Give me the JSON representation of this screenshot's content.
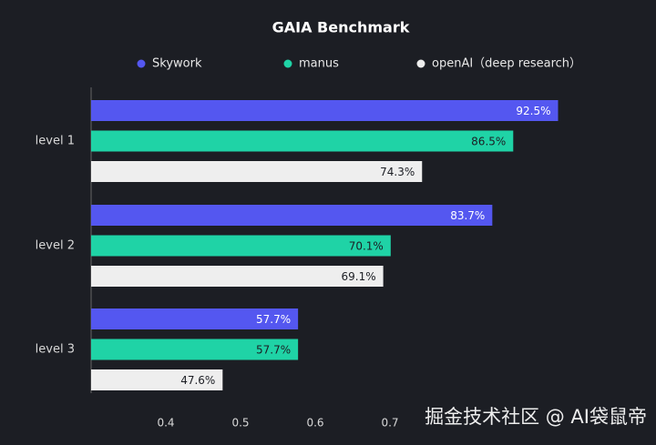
{
  "chart_data": {
    "type": "bar",
    "orientation": "horizontal",
    "title": "GAIA Benchmark",
    "categories": [
      "level 1",
      "level 2",
      "level 3"
    ],
    "series": [
      {
        "name": "Skywork",
        "color": "#5457f0",
        "values": [
          0.925,
          0.837,
          0.577
        ],
        "value_labels": [
          "92.5%",
          "83.7%",
          "57.7%"
        ],
        "label_color": "#ffffff"
      },
      {
        "name": "manus",
        "color": "#1fd3a6",
        "values": [
          0.865,
          0.701,
          0.577
        ],
        "value_labels": [
          "86.5%",
          "70.1%",
          "57.7%"
        ],
        "label_color": "#1c1e24"
      },
      {
        "name": "openAI（deep research）",
        "color": "#eeeeee",
        "values": [
          0.743,
          0.691,
          0.476
        ],
        "value_labels": [
          "74.3%",
          "69.1%",
          "47.6%"
        ],
        "label_color": "#1c1e24"
      }
    ],
    "xlim": [
      0.3,
      0.95
    ],
    "xticks": [
      0.4,
      0.5,
      0.6,
      0.7
    ],
    "grid": false
  },
  "watermark": "掘金技术社区 @ AI袋鼠帝"
}
